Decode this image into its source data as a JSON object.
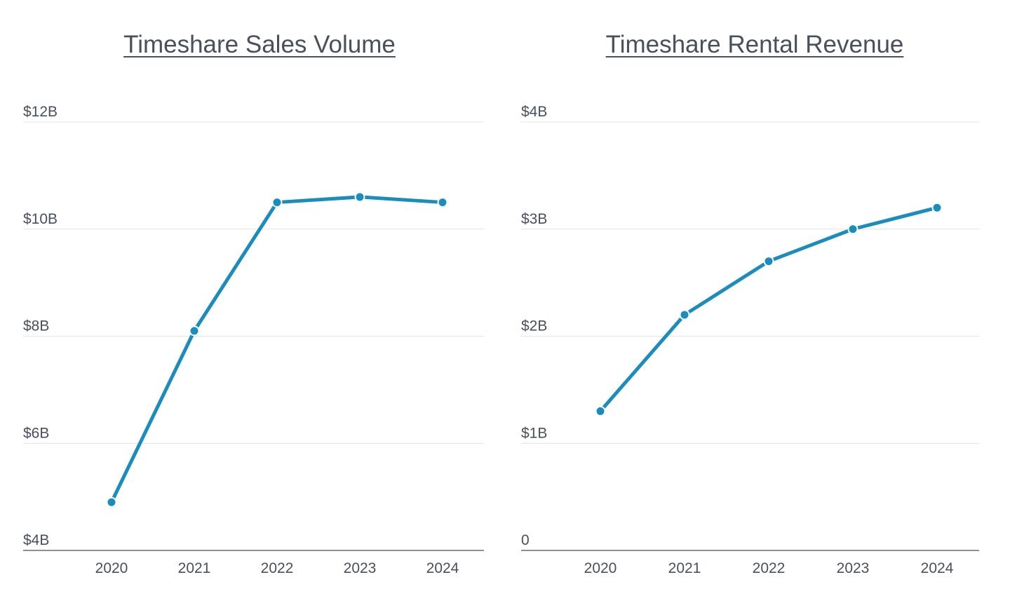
{
  "chart_data": [
    {
      "type": "line",
      "title": "Timeshare Sales Volume",
      "xlabel": "",
      "ylabel": "",
      "categories": [
        "2020",
        "2021",
        "2022",
        "2023",
        "2024"
      ],
      "series": [
        {
          "values": [
            4.9,
            8.1,
            10.5,
            10.6,
            10.5
          ]
        }
      ],
      "y_ticks": [
        {
          "value": 4,
          "label": "$4B"
        },
        {
          "value": 6,
          "label": "$6B"
        },
        {
          "value": 8,
          "label": "$8B"
        },
        {
          "value": 10,
          "label": "$10B"
        },
        {
          "value": 12,
          "label": "$12B"
        }
      ],
      "ylim": [
        4,
        12
      ],
      "y_units": "billions of US dollars",
      "grid": true,
      "legend": "none",
      "color": "#1a8dbc"
    },
    {
      "type": "line",
      "title": "Timeshare Rental Revenue",
      "xlabel": "",
      "ylabel": "",
      "categories": [
        "2020",
        "2021",
        "2022",
        "2023",
        "2024"
      ],
      "series": [
        {
          "values": [
            1.3,
            2.2,
            2.7,
            3.0,
            3.2
          ]
        }
      ],
      "y_ticks": [
        {
          "value": 0,
          "label": "0"
        },
        {
          "value": 1,
          "label": "$1B"
        },
        {
          "value": 2,
          "label": "$2B"
        },
        {
          "value": 3,
          "label": "$3B"
        },
        {
          "value": 4,
          "label": "$4B"
        }
      ],
      "ylim": [
        0,
        4
      ],
      "y_units": "billions of US dollars",
      "grid": true,
      "legend": "none",
      "color": "#1a8dbc"
    }
  ]
}
